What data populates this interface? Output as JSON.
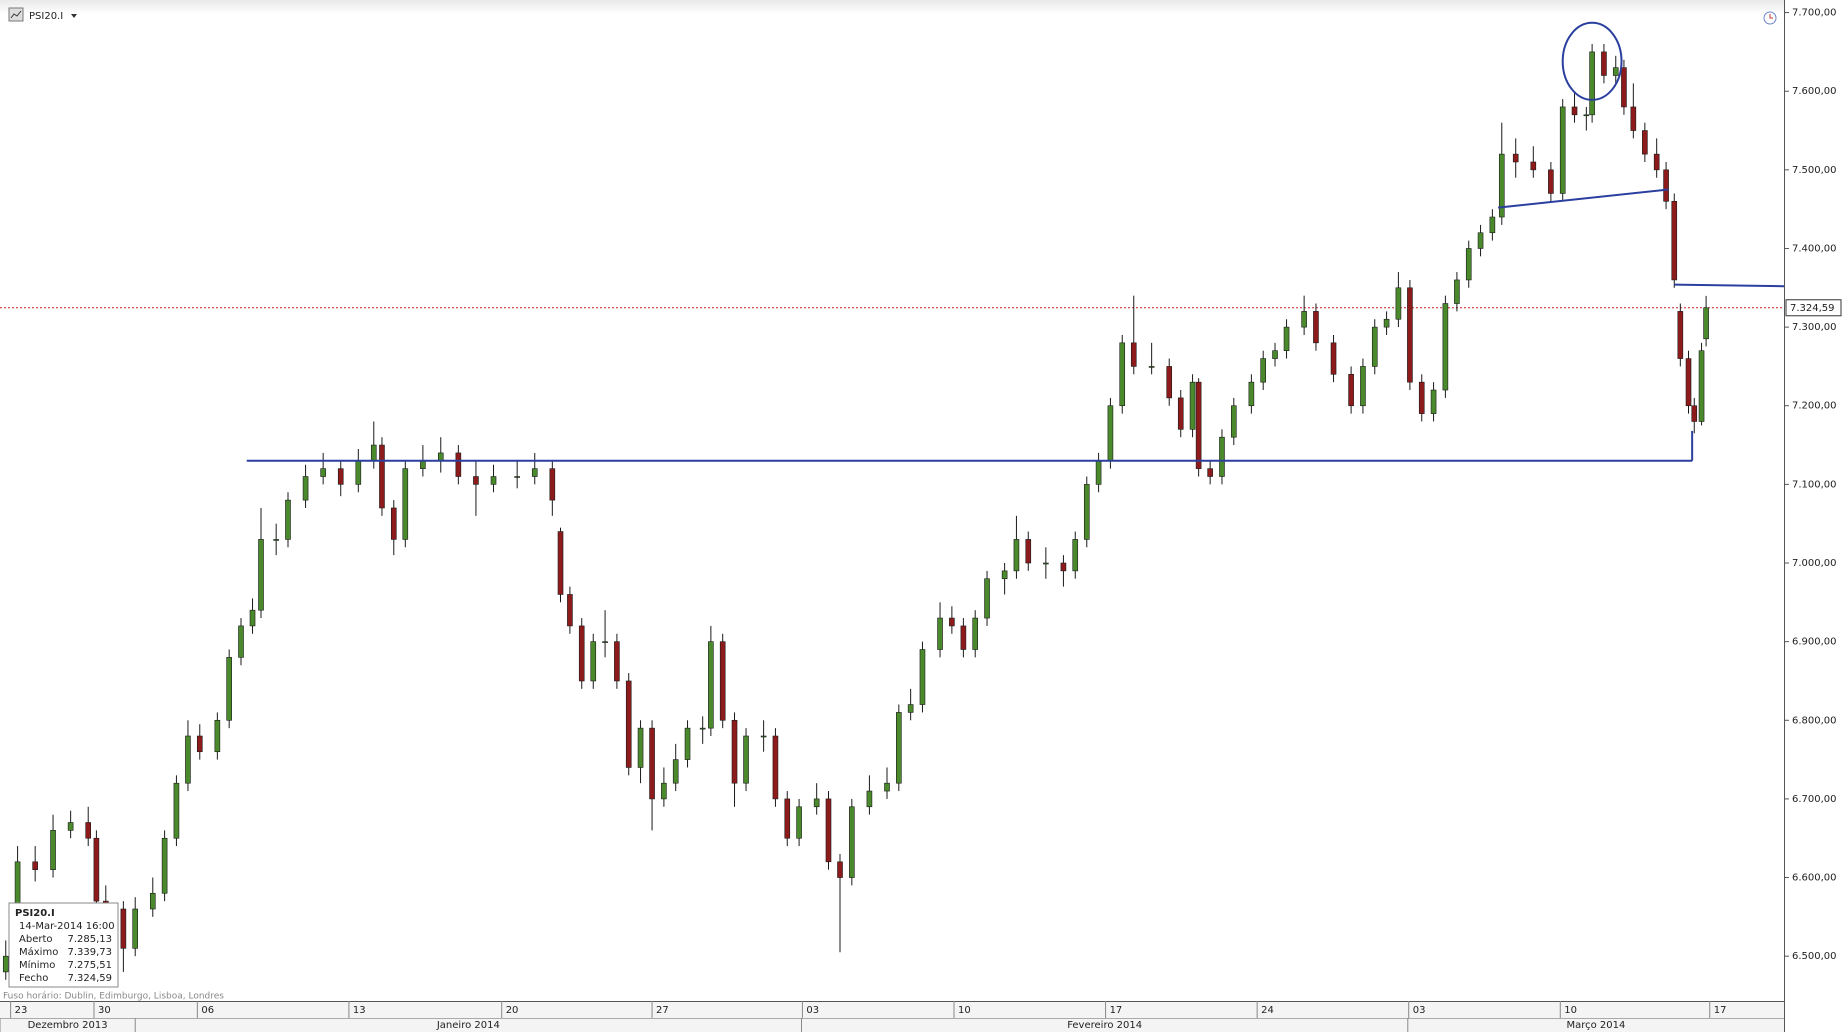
{
  "chart_data": {
    "type": "candlestick",
    "title": "PSI20.I",
    "x": [
      -0.16,
      0.23,
      0.81,
      1.4,
      1.98,
      2.56,
      2.83,
      3.14,
      3.72,
      4.11,
      4.69,
      5.08,
      5.47,
      5.85,
      6.24,
      6.82,
      7.21,
      7.6,
      7.98,
      8.26,
      8.76,
      9.15,
      9.73,
      10.31,
      10.89,
      11.47,
      11.98,
      12.25,
      12.64,
      13.02,
      13.6,
      14.19,
      14.77,
      15.35,
      15.93,
      16.71,
      17.29,
      17.87,
      18.14,
      18.45,
      18.84,
      19.22,
      19.61,
      20.0,
      20.39,
      20.78,
      21.16,
      21.55,
      21.94,
      22.33,
      22.83,
      23.1,
      23.49,
      23.88,
      24.26,
      24.84,
      25.23,
      25.62,
      26.01,
      26.59,
      26.98,
      27.36,
      27.75,
      28.33,
      28.91,
      29.3,
      29.69,
      30.08,
      30.66,
      31.05,
      31.43,
      31.82,
      32.21,
      32.79,
      33.18,
      33.57,
      34.15,
      34.73,
      35.12,
      35.5,
      35.89,
      36.28,
      36.67,
      37.05,
      37.64,
      38.22,
      38.6,
      38.99,
      39.19,
      39.57,
      39.96,
      40.35,
      40.93,
      41.32,
      41.71,
      42.09,
      42.67,
      43.06,
      43.64,
      44.22,
      44.61,
      45.0,
      45.39,
      45.78,
      46.16,
      46.55,
      46.94,
      47.33,
      47.71,
      48.1,
      48.49,
      48.88,
      49.19,
      49.65,
      50.23,
      50.81,
      51.2,
      51.59,
      51.98,
      52.17,
      52.56,
      52.95,
      53.22,
      53.53,
      53.91,
      54.3,
      54.61,
      54.88,
      55.08,
      55.35,
      55.54,
      55.78,
      55.93
    ],
    "open": [
      6480,
      6500,
      6620,
      6610,
      6660,
      6670,
      6650,
      6570,
      6560,
      6510,
      6560,
      6580,
      6650,
      6720,
      6780,
      6760,
      6800,
      6880,
      6920,
      6940,
      7030,
      7030,
      7080,
      7110,
      7120,
      7100,
      7130,
      7150,
      7070,
      7030,
      7120,
      7130,
      7140,
      7110,
      7100,
      7110,
      7110,
      7120,
      7040,
      6960,
      6920,
      6850,
      6900,
      6900,
      6850,
      6740,
      6790,
      6700,
      6720,
      6750,
      6790,
      6790,
      6900,
      6800,
      6720,
      6780,
      6780,
      6700,
      6650,
      6690,
      6700,
      6620,
      6600,
      6690,
      6710,
      6720,
      6810,
      6820,
      6890,
      6930,
      6920,
      6890,
      6930,
      6980,
      6990,
      7030,
      7000,
      7000,
      6990,
      7030,
      7100,
      7130,
      7200,
      7280,
      7250,
      7250,
      7210,
      7170,
      7230,
      7120,
      7110,
      7160,
      7200,
      7230,
      7260,
      7270,
      7300,
      7320,
      7280,
      7240,
      7200,
      7250,
      7300,
      7310,
      7350,
      7230,
      7190,
      7220,
      7330,
      7360,
      7400,
      7420,
      7440,
      7520,
      7510,
      7500,
      7470,
      7580,
      7570,
      7570,
      7650,
      7620,
      7630,
      7580,
      7550,
      7520,
      7500,
      7460,
      7320,
      7260,
      7200,
      7180,
      7285.13
    ],
    "high": [
      6520,
      6640,
      6640,
      6680,
      6685,
      6690,
      6660,
      6590,
      6570,
      6575,
      6600,
      6660,
      6730,
      6800,
      6795,
      6810,
      6890,
      6930,
      6955,
      7070,
      7050,
      7090,
      7125,
      7140,
      7130,
      7145,
      7180,
      7160,
      7080,
      7130,
      7150,
      7160,
      7150,
      7130,
      7125,
      7130,
      7140,
      7130,
      7045,
      6970,
      6930,
      6910,
      6940,
      6910,
      6860,
      6800,
      6800,
      6740,
      6770,
      6800,
      6805,
      6920,
      6910,
      6810,
      6790,
      6800,
      6790,
      6710,
      6700,
      6720,
      6710,
      6630,
      6700,
      6730,
      6740,
      6820,
      6840,
      6900,
      6950,
      6945,
      6930,
      6940,
      6990,
      7000,
      7060,
      7040,
      7020,
      7010,
      7040,
      7110,
      7140,
      7210,
      7290,
      7340,
      7280,
      7260,
      7220,
      7240,
      7235,
      7130,
      7170,
      7210,
      7240,
      7270,
      7280,
      7310,
      7340,
      7330,
      7290,
      7250,
      7260,
      7310,
      7320,
      7370,
      7360,
      7240,
      7230,
      7340,
      7370,
      7410,
      7430,
      7450,
      7560,
      7540,
      7530,
      7510,
      7590,
      7600,
      7580,
      7660,
      7660,
      7645,
      7640,
      7610,
      7560,
      7540,
      7510,
      7470,
      7330,
      7270,
      7210,
      7280,
      7339.73
    ],
    "low": [
      6470,
      6490,
      6595,
      6600,
      6650,
      6640,
      6560,
      6545,
      6480,
      6500,
      6550,
      6570,
      6640,
      6710,
      6750,
      6750,
      6790,
      6870,
      6910,
      6930,
      7010,
      7020,
      7070,
      7100,
      7085,
      7090,
      7120,
      7060,
      7010,
      7020,
      7110,
      7115,
      7100,
      7060,
      7090,
      7095,
      7100,
      7060,
      6950,
      6910,
      6840,
      6840,
      6880,
      6840,
      6730,
      6720,
      6660,
      6690,
      6710,
      6740,
      6770,
      6780,
      6790,
      6690,
      6710,
      6760,
      6690,
      6640,
      6640,
      6680,
      6610,
      6505,
      6590,
      6680,
      6700,
      6710,
      6800,
      6810,
      6880,
      6910,
      6880,
      6880,
      6920,
      6960,
      6980,
      6990,
      6980,
      6970,
      6980,
      7020,
      7090,
      7120,
      7190,
      7240,
      7240,
      7200,
      7160,
      7160,
      7110,
      7100,
      7100,
      7150,
      7190,
      7220,
      7250,
      7260,
      7290,
      7270,
      7230,
      7190,
      7190,
      7240,
      7290,
      7300,
      7220,
      7180,
      7180,
      7210,
      7320,
      7350,
      7390,
      7410,
      7430,
      7490,
      7490,
      7460,
      7460,
      7560,
      7550,
      7560,
      7610,
      7610,
      7570,
      7540,
      7510,
      7490,
      7450,
      7350,
      7250,
      7190,
      7165,
      7175,
      7275.51
    ],
    "close": [
      6500,
      6620,
      6610,
      6660,
      6670,
      6650,
      6570,
      6560,
      6510,
      6560,
      6580,
      6650,
      6720,
      6780,
      6760,
      6800,
      6880,
      6920,
      6940,
      7030,
      7030,
      7080,
      7110,
      7120,
      7100,
      7130,
      7150,
      7070,
      7030,
      7120,
      7130,
      7140,
      7110,
      7100,
      7110,
      7110,
      7120,
      7080,
      6960,
      6920,
      6850,
      6900,
      6900,
      6850,
      6740,
      6790,
      6700,
      6720,
      6750,
      6790,
      6790,
      6900,
      6800,
      6720,
      6780,
      6780,
      6700,
      6650,
      6690,
      6700,
      6620,
      6600,
      6690,
      6710,
      6720,
      6810,
      6820,
      6890,
      6930,
      6920,
      6890,
      6930,
      6980,
      6990,
      7030,
      7000,
      7000,
      6990,
      7030,
      7100,
      7130,
      7200,
      7280,
      7250,
      7250,
      7210,
      7170,
      7230,
      7120,
      7110,
      7160,
      7200,
      7230,
      7260,
      7270,
      7300,
      7320,
      7280,
      7240,
      7200,
      7250,
      7300,
      7310,
      7350,
      7230,
      7190,
      7220,
      7330,
      7360,
      7400,
      7420,
      7440,
      7520,
      7510,
      7500,
      7470,
      7580,
      7570,
      7570,
      7650,
      7620,
      7630,
      7580,
      7550,
      7520,
      7500,
      7460,
      7360,
      7260,
      7200,
      7180,
      7270,
      7324.59
    ],
    "colors": {
      "up": "#4a8a2c",
      "down": "#8e1b1b",
      "wick": "#1a1a1a"
    },
    "xlim": [
      -0.35,
      58.5
    ],
    "xticks": [
      {
        "value": 0,
        "label": "23"
      },
      {
        "value": 2.75,
        "label": "30"
      },
      {
        "value": 6.16,
        "label": "06"
      },
      {
        "value": 11.16,
        "label": "13"
      },
      {
        "value": 16.2,
        "label": "20"
      },
      {
        "value": 21.16,
        "label": "27"
      },
      {
        "value": 26.12,
        "label": "03"
      },
      {
        "value": 31.12,
        "label": "10"
      },
      {
        "value": 36.12,
        "label": "17"
      },
      {
        "value": 41.12,
        "label": "24"
      },
      {
        "value": 46.12,
        "label": "03"
      },
      {
        "value": 51.12,
        "label": "10"
      },
      {
        "value": 56.05,
        "label": "17"
      }
    ],
    "month_bands": [
      {
        "label": "Dezembro 2013",
        "start": -0.35
      },
      {
        "label": "Janeiro 2014",
        "start": 4.11
      },
      {
        "label": "Fevereiro 2014",
        "start": 26.09
      },
      {
        "label": "Março 2014",
        "start": 46.09
      }
    ],
    "ylim": [
      6443,
      7716
    ],
    "yticks": [
      {
        "value": 6500,
        "label": "6.500,00"
      },
      {
        "value": 6600,
        "label": "6.600,00"
      },
      {
        "value": 6700,
        "label": "6.700,00"
      },
      {
        "value": 6800,
        "label": "6.800,00"
      },
      {
        "value": 6900,
        "label": "6.900,00"
      },
      {
        "value": 7000,
        "label": "7.000,00"
      },
      {
        "value": 7100,
        "label": "7.100,00"
      },
      {
        "value": 7200,
        "label": "7.200,00"
      },
      {
        "value": 7300,
        "label": "7.300,00"
      },
      {
        "value": 7400,
        "label": "7.400,00"
      },
      {
        "value": 7500,
        "label": "7.500,00"
      },
      {
        "value": 7600,
        "label": "7.600,00"
      },
      {
        "value": 7700,
        "label": "7.700,00"
      }
    ],
    "grid": false,
    "last_price": {
      "value": 7324.59,
      "label": "7.324,59",
      "color": "#cc2222"
    },
    "annotations": {
      "color": "#2a3f9e",
      "lines": [
        {
          "x": [
            7.79,
            55.47
          ],
          "y": [
            7130,
            7130
          ]
        },
        {
          "x": [
            49.07,
            54.69
          ],
          "y": [
            7452,
            7475
          ]
        },
        {
          "x": [
            54.88,
            58.5
          ],
          "y": [
            7354,
            7352
          ]
        },
        {
          "x": [
            55.47,
            55.47
          ],
          "y": [
            7130,
            7168
          ]
        }
      ],
      "ellipse": {
        "x": 52.17,
        "y": 7638,
        "rx": 0.97,
        "ry": 49
      }
    },
    "info_box": {
      "title": "PSI20.I",
      "date": "14-Mar-2014 16:00",
      "rows": [
        {
          "label": "Aberto",
          "value": "7.285,13"
        },
        {
          "label": "Máximo",
          "value": "7.339,73"
        },
        {
          "label": "Mínimo",
          "value": "7.275,51"
        },
        {
          "label": "Fecho",
          "value": "7.324,59"
        }
      ]
    },
    "footer": "Fuso horário: Dublin, Edimburgo, Lisboa, Londres"
  }
}
